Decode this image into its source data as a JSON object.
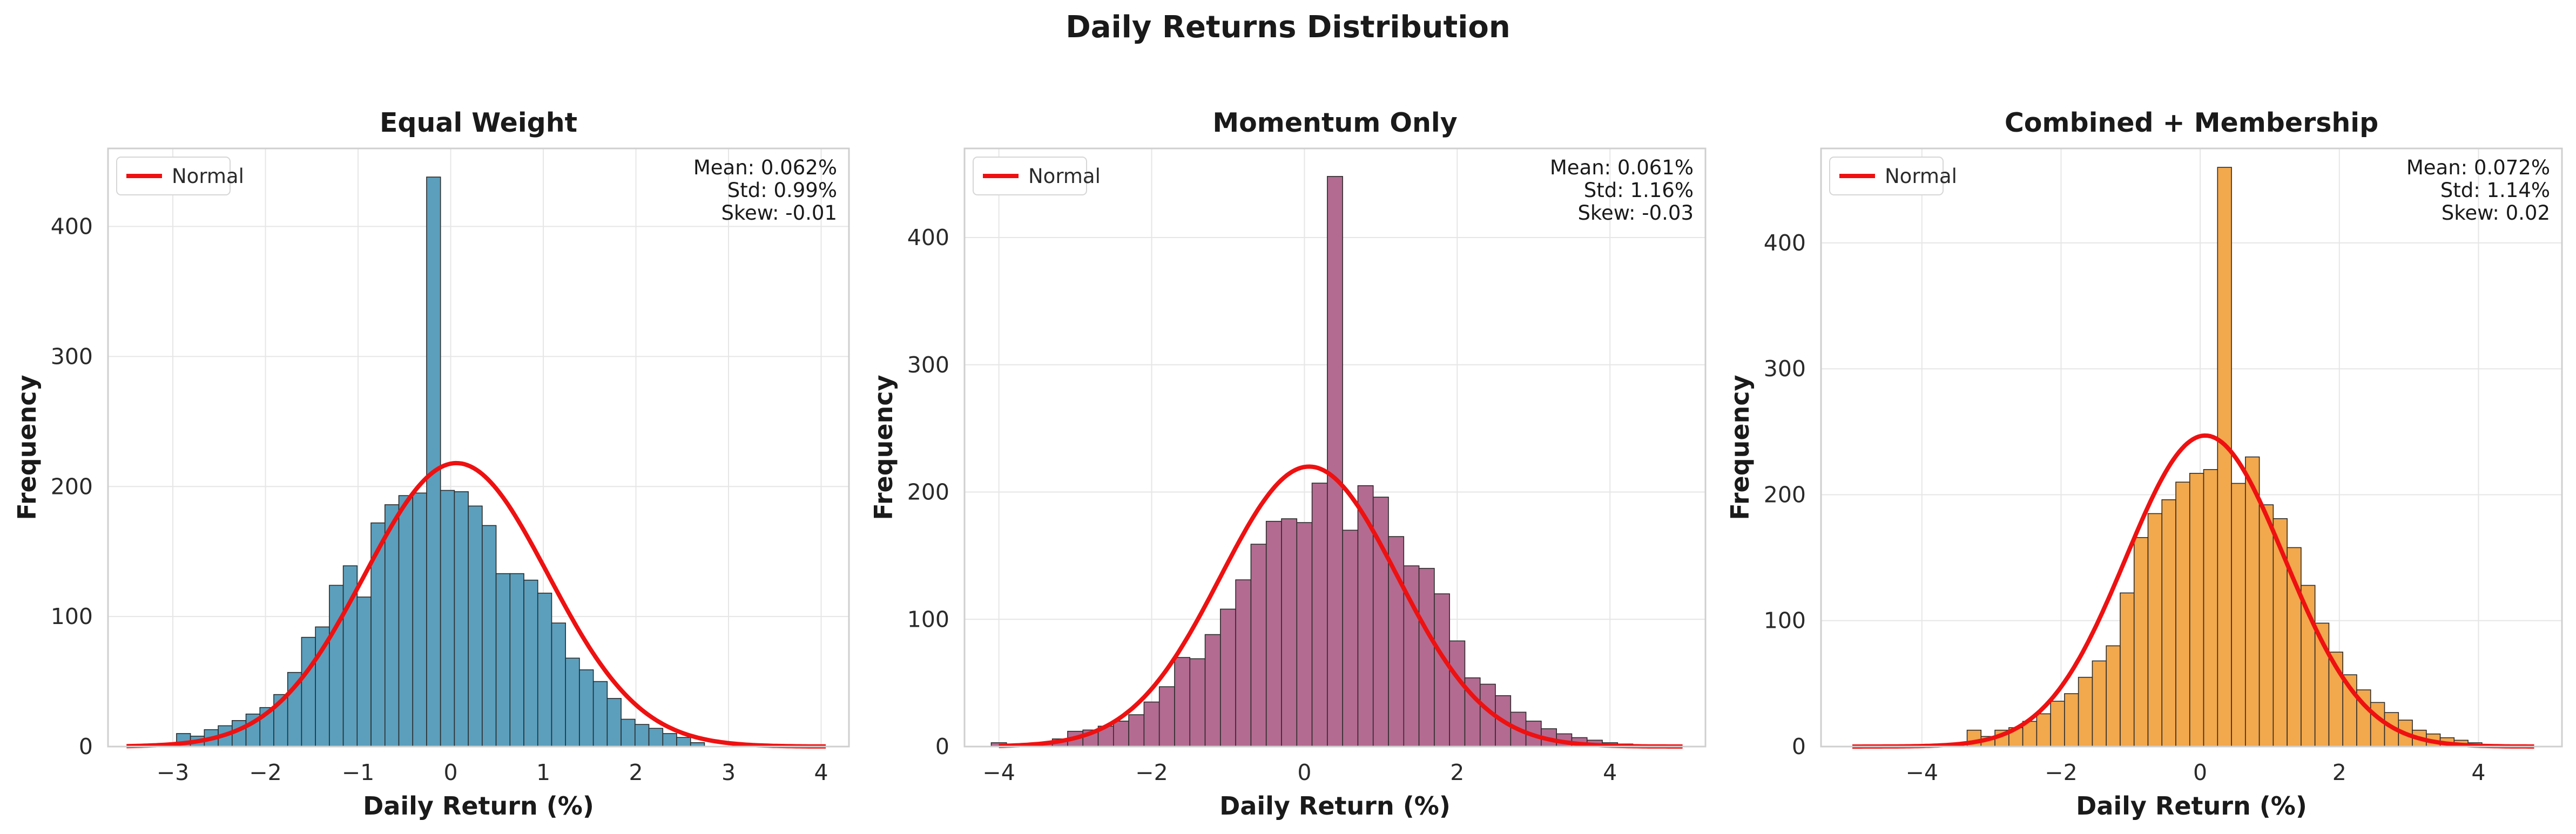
{
  "figure": {
    "suptitle": "Daily Returns Distribution",
    "colors": {
      "normal_curve": "#ee1111",
      "grid": "#e6e6e6",
      "frame": "#cfcfcf",
      "edge": "#2c2c2c"
    }
  },
  "chart_data": [
    {
      "type": "bar",
      "title": "Equal Weight",
      "xlabel": "Daily Return (%)",
      "ylabel": "Frequency",
      "color": "#5b9fbd",
      "xlim": [
        -3.7,
        4.3
      ],
      "ylim": [
        0,
        460
      ],
      "xticks": [
        -3,
        -2,
        -1,
        0,
        1,
        2,
        3,
        4
      ],
      "yticks": [
        0,
        100,
        200,
        300,
        400
      ],
      "bin_start": -2.96,
      "bin_width": 0.15,
      "values": [
        10,
        8,
        13,
        16,
        20,
        25,
        30,
        40,
        57,
        84,
        92,
        124,
        139,
        115,
        172,
        186,
        193,
        195,
        438,
        197,
        196,
        185,
        170,
        133,
        133,
        128,
        118,
        95,
        68,
        59,
        50,
        37,
        21,
        17,
        14,
        10,
        7,
        3
      ],
      "normal": {
        "mean": 0.062,
        "std": 0.99,
        "peak": 218,
        "range": [
          -3.5,
          4.05
        ]
      },
      "legend": [
        "Normal"
      ],
      "stats": [
        "Mean: 0.062%",
        "Std: 0.99%",
        "Skew: -0.01"
      ]
    },
    {
      "type": "bar",
      "title": "Momentum Only",
      "xlabel": "Daily Return (%)",
      "ylabel": "Frequency",
      "color": "#b36b91",
      "xlim": [
        -4.45,
        5.25
      ],
      "ylim": [
        0,
        470
      ],
      "xticks": [
        -4,
        -2,
        0,
        2,
        4
      ],
      "yticks": [
        0,
        100,
        200,
        300,
        400
      ],
      "bin_start": -4.1,
      "bin_width": 0.2,
      "values": [
        3,
        1,
        2,
        3,
        6,
        12,
        13,
        16,
        20,
        25,
        35,
        47,
        70,
        69,
        88,
        108,
        131,
        159,
        177,
        179,
        176,
        207,
        448,
        170,
        205,
        196,
        165,
        142,
        140,
        120,
        83,
        54,
        49,
        40,
        27,
        20,
        14,
        10,
        7,
        5,
        3,
        2
      ],
      "normal": {
        "mean": 0.061,
        "std": 1.16,
        "peak": 220,
        "range": [
          -4.0,
          4.95
        ]
      },
      "legend": [
        "Normal"
      ],
      "stats": [
        "Mean: 0.061%",
        "Std: 1.16%",
        "Skew: -0.03"
      ]
    },
    {
      "type": "bar",
      "title": "Combined + Membership",
      "xlabel": "Daily Return (%)",
      "ylabel": "Frequency",
      "color": "#f2a84c",
      "xlim": [
        -5.45,
        5.2
      ],
      "ylim": [
        0,
        475
      ],
      "xticks": [
        -4,
        -2,
        0,
        2,
        4
      ],
      "yticks": [
        0,
        100,
        200,
        300,
        400
      ],
      "bin_start": -3.35,
      "bin_width": 0.2,
      "values": [
        13,
        8,
        13,
        15,
        20,
        26,
        36,
        42,
        55,
        68,
        80,
        122,
        166,
        185,
        196,
        210,
        217,
        220,
        460,
        209,
        230,
        192,
        181,
        158,
        128,
        98,
        75,
        57,
        45,
        35,
        27,
        21,
        13,
        10,
        7,
        5,
        3
      ],
      "normal": {
        "mean": 0.072,
        "std": 1.14,
        "peak": 247,
        "range": [
          -5.0,
          4.8
        ]
      },
      "legend": [
        "Normal"
      ],
      "stats": [
        "Mean: 0.072%",
        "Std: 1.14%",
        "Skew: 0.02"
      ]
    }
  ]
}
